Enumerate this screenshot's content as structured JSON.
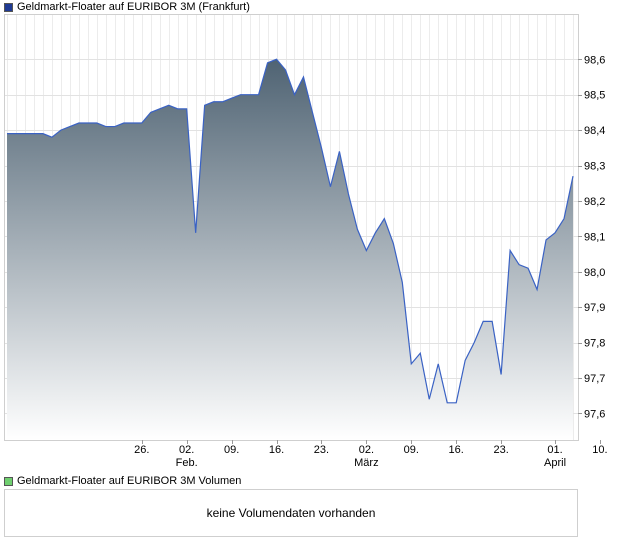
{
  "legend_price": {
    "label": "Geldmarkt-Floater auf EURIBOR 3M (Frankfurt)",
    "color": "#1f3a93"
  },
  "legend_volume": {
    "label": "Geldmarkt-Floater auf EURIBOR 3M Volumen",
    "color": "#6fcf6f"
  },
  "volume": {
    "message": "keine Volumendaten vorhanden"
  },
  "chart_data": {
    "type": "area",
    "title": "",
    "xlabel": "",
    "ylabel": "",
    "ylim": [
      97.525,
      98.725
    ],
    "yticks": [
      "97,6",
      "97,7",
      "97,8",
      "97,9",
      "98,0",
      "98,1",
      "98,2",
      "98,3",
      "98,4",
      "98,5",
      "98,6"
    ],
    "ytick_values": [
      97.6,
      97.7,
      97.8,
      97.9,
      98.0,
      98.1,
      98.2,
      98.3,
      98.4,
      98.5,
      98.6
    ],
    "xticks": [
      {
        "day": "26.",
        "month": "",
        "index": 15
      },
      {
        "day": "02.",
        "month": "Feb.",
        "index": 20
      },
      {
        "day": "09.",
        "month": "",
        "index": 25
      },
      {
        "day": "16.",
        "month": "",
        "index": 30
      },
      {
        "day": "23.",
        "month": "",
        "index": 35
      },
      {
        "day": "02.",
        "month": "März",
        "index": 40
      },
      {
        "day": "09.",
        "month": "",
        "index": 45
      },
      {
        "day": "16.",
        "month": "",
        "index": 50
      },
      {
        "day": "23.",
        "month": "",
        "index": 55
      },
      {
        "day": "01.",
        "month": "April",
        "index": 61
      },
      {
        "day": "10.",
        "month": "",
        "index": 66
      }
    ],
    "grid": true,
    "line_color": "#3a62c4",
    "fill_top": "#4f6373",
    "fill_bottom": "#ffffff",
    "series": [
      {
        "name": "Geldmarkt-Floater auf EURIBOR 3M (Frankfurt)",
        "values": [
          98.39,
          98.39,
          98.39,
          98.39,
          98.39,
          98.38,
          98.4,
          98.41,
          98.42,
          98.42,
          98.42,
          98.41,
          98.41,
          98.42,
          98.42,
          98.42,
          98.45,
          98.46,
          98.47,
          98.46,
          98.46,
          98.11,
          98.47,
          98.48,
          98.48,
          98.49,
          98.5,
          98.5,
          98.5,
          98.59,
          98.6,
          98.57,
          98.5,
          98.55,
          98.45,
          98.35,
          98.24,
          98.34,
          98.22,
          98.12,
          98.06,
          98.11,
          98.15,
          98.08,
          97.97,
          97.74,
          97.77,
          97.64,
          97.74,
          97.63,
          97.63,
          97.75,
          97.8,
          97.86,
          97.86,
          97.71,
          98.06,
          98.02,
          98.01,
          97.95,
          98.09,
          98.11,
          98.15,
          98.27
        ]
      }
    ]
  }
}
